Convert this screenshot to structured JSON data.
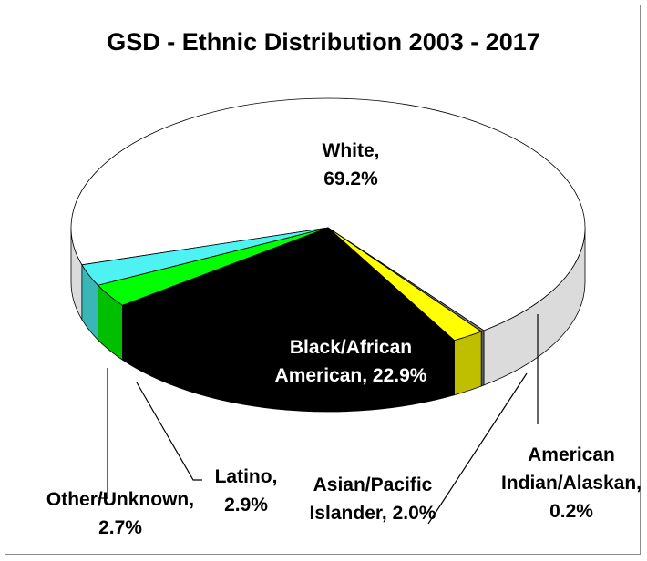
{
  "chart_data": {
    "type": "pie",
    "style": "3d",
    "title": "GSD - Ethnic Distribution 2003 - 2017",
    "legend": "none",
    "slices": [
      {
        "name": "White",
        "value": 69.2,
        "color": "#ffffff",
        "label_lines": [
          "White,",
          "69.2%"
        ]
      },
      {
        "name": "American Indian/Alaskan",
        "value": 0.2,
        "color": "#7f7f7f",
        "label_lines": [
          "American",
          "Indian/Alaskan,",
          "0.2%"
        ]
      },
      {
        "name": "Asian/Pacific Islander",
        "value": 2.0,
        "color": "#ffff00",
        "label_lines": [
          "Asian/Pacific",
          "Islander, 2.0%"
        ]
      },
      {
        "name": "Black/African American",
        "value": 22.9,
        "color": "#000000",
        "label_lines": [
          "Black/African",
          "American, 22.9%"
        ]
      },
      {
        "name": "Latino",
        "value": 2.9,
        "color": "#00ff00",
        "label_lines": [
          "Latino,",
          "2.9%"
        ]
      },
      {
        "name": "Other/Unknown",
        "value": 2.7,
        "color": "#4ff2f2",
        "label_lines": [
          "Other/Unknown,",
          "2.7%"
        ]
      }
    ]
  }
}
